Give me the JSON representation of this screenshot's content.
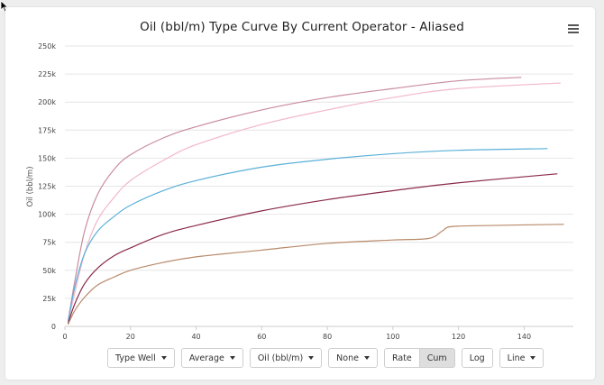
{
  "chart_data": {
    "type": "line",
    "title": "Oil (bbl/m) Type Curve By Current Operator - Aliased",
    "xlabel": "",
    "ylabel": "Oil (bbl/m)",
    "xlim": [
      0,
      155
    ],
    "ylim": [
      0,
      250000
    ],
    "x_ticks": [
      0,
      20,
      40,
      60,
      80,
      100,
      120,
      140
    ],
    "x_tick_labels": [
      "0",
      "20",
      "40",
      "60",
      "80",
      "100",
      "120",
      "140"
    ],
    "y_ticks": [
      0,
      25000,
      50000,
      75000,
      100000,
      125000,
      150000,
      175000,
      200000,
      225000,
      250000
    ],
    "y_tick_labels": [
      "0",
      "25k",
      "50k",
      "75k",
      "100k",
      "125k",
      "150k",
      "175k",
      "200k",
      "225k",
      "250k"
    ],
    "grid": true,
    "legend": "none",
    "series": [
      {
        "color": "#c98ba0",
        "x": [
          1,
          3,
          6,
          10,
          15,
          20,
          30,
          40,
          60,
          80,
          100,
          120,
          139
        ],
        "y": [
          5000,
          40000,
          85000,
          118000,
          140000,
          153000,
          168000,
          178000,
          193000,
          204000,
          212000,
          219000,
          222000
        ]
      },
      {
        "color": "#f2b7c8",
        "x": [
          1,
          3,
          6,
          10,
          15,
          20,
          30,
          40,
          60,
          80,
          100,
          120,
          151
        ],
        "y": [
          4000,
          30000,
          65000,
          95000,
          115000,
          130000,
          148000,
          162000,
          180000,
          193000,
          204000,
          212000,
          217000
        ]
      },
      {
        "color": "#5ab0d8",
        "x": [
          1,
          3,
          6,
          10,
          15,
          20,
          30,
          40,
          60,
          80,
          100,
          120,
          147
        ],
        "y": [
          5000,
          35000,
          65000,
          85000,
          98000,
          108000,
          121000,
          130000,
          142000,
          149000,
          154000,
          157000,
          158500
        ]
      },
      {
        "color": "#8a2a4a",
        "x": [
          1,
          3,
          6,
          10,
          15,
          20,
          30,
          40,
          60,
          80,
          100,
          120,
          150
        ],
        "y": [
          3000,
          20000,
          38000,
          52000,
          63000,
          70000,
          82000,
          90000,
          103000,
          113000,
          121000,
          128000,
          136000
        ]
      },
      {
        "color": "#b88a6a",
        "x": [
          1,
          3,
          6,
          10,
          15,
          20,
          30,
          40,
          60,
          80,
          100,
          111,
          115,
          118,
          130,
          152
        ],
        "y": [
          2000,
          14000,
          26000,
          37000,
          44000,
          50000,
          57000,
          62000,
          68000,
          74000,
          77000,
          78500,
          85000,
          89000,
          90000,
          91000
        ]
      }
    ]
  },
  "controls": {
    "type_well": "Type Well",
    "average": "Average",
    "oil": "Oil (bbl/m)",
    "none": "None",
    "rate": "Rate",
    "cum": "Cum",
    "log": "Log",
    "line": "Line"
  }
}
